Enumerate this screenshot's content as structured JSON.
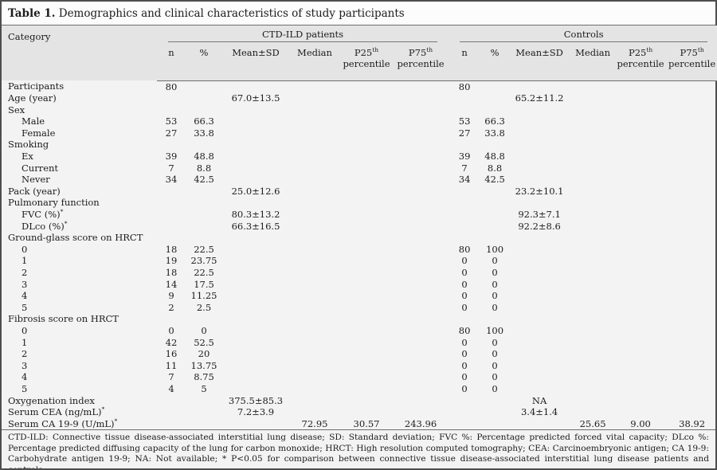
{
  "title": {
    "label": "Table 1.",
    "text": " Demographics and clinical characteristics of study participants"
  },
  "table": {
    "category_header": "Category",
    "groups": [
      {
        "label": "CTD-ILD patients"
      },
      {
        "label": "Controls"
      }
    ],
    "subcols": [
      {
        "line1": "n",
        "sup": "",
        "line2": ""
      },
      {
        "line1": "%",
        "sup": "",
        "line2": ""
      },
      {
        "line1": "Mean±SD",
        "sup": "",
        "line2": ""
      },
      {
        "line1": "Median",
        "sup": "",
        "line2": ""
      },
      {
        "line1": "P25",
        "sup": "th",
        "line2": "percentile"
      },
      {
        "line1": "P75",
        "sup": "th",
        "line2": "percentile"
      }
    ],
    "rows": [
      {
        "label": "Participants",
        "sup": "",
        "indent": 0,
        "values": [
          "80",
          "",
          "",
          "",
          "",
          "",
          "80",
          "",
          "",
          "",
          "",
          ""
        ]
      },
      {
        "label": "Age (year)",
        "sup": "",
        "indent": 0,
        "values": [
          "",
          "",
          "67.0±13.5",
          "",
          "",
          "",
          "",
          "",
          "65.2±11.2",
          "",
          "",
          ""
        ]
      },
      {
        "label": "Sex",
        "sup": "",
        "indent": 0,
        "values": [
          "",
          "",
          "",
          "",
          "",
          "",
          "",
          "",
          "",
          "",
          "",
          ""
        ]
      },
      {
        "label": "Male",
        "sup": "",
        "indent": 1,
        "values": [
          "53",
          "66.3",
          "",
          "",
          "",
          "",
          "53",
          "66.3",
          "",
          "",
          "",
          ""
        ]
      },
      {
        "label": "Female",
        "sup": "",
        "indent": 1,
        "values": [
          "27",
          "33.8",
          "",
          "",
          "",
          "",
          "27",
          "33.8",
          "",
          "",
          "",
          ""
        ]
      },
      {
        "label": "Smoking",
        "sup": "",
        "indent": 0,
        "values": [
          "",
          "",
          "",
          "",
          "",
          "",
          "",
          "",
          "",
          "",
          "",
          ""
        ]
      },
      {
        "label": "Ex",
        "sup": "",
        "indent": 1,
        "values": [
          "39",
          "48.8",
          "",
          "",
          "",
          "",
          "39",
          "48.8",
          "",
          "",
          "",
          ""
        ]
      },
      {
        "label": "Current",
        "sup": "",
        "indent": 1,
        "values": [
          "7",
          "8.8",
          "",
          "",
          "",
          "",
          "7",
          "8.8",
          "",
          "",
          "",
          ""
        ]
      },
      {
        "label": "Never",
        "sup": "",
        "indent": 1,
        "values": [
          "34",
          "42.5",
          "",
          "",
          "",
          "",
          "34",
          "42.5",
          "",
          "",
          "",
          ""
        ]
      },
      {
        "label": "Pack (year)",
        "sup": "",
        "indent": 0,
        "values": [
          "",
          "",
          "25.0±12.6",
          "",
          "",
          "",
          "",
          "",
          "23.2±10.1",
          "",
          "",
          ""
        ]
      },
      {
        "label": "Pulmonary function",
        "sup": "",
        "indent": 0,
        "values": [
          "",
          "",
          "",
          "",
          "",
          "",
          "",
          "",
          "",
          "",
          "",
          ""
        ]
      },
      {
        "label": "FVC (%)",
        "sup": "*",
        "indent": 1,
        "values": [
          "",
          "",
          "80.3±13.2",
          "",
          "",
          "",
          "",
          "",
          "92.3±7.1",
          "",
          "",
          ""
        ]
      },
      {
        "label": "DLco (%)",
        "sup": "*",
        "indent": 1,
        "values": [
          "",
          "",
          "66.3±16.5",
          "",
          "",
          "",
          "",
          "",
          "92.2±8.6",
          "",
          "",
          ""
        ]
      },
      {
        "label": "Ground-glass score on HRCT",
        "sup": "",
        "indent": 0,
        "values": [
          "",
          "",
          "",
          "",
          "",
          "",
          "",
          "",
          "",
          "",
          "",
          ""
        ]
      },
      {
        "label": "0",
        "sup": "",
        "indent": 1,
        "values": [
          "18",
          "22.5",
          "",
          "",
          "",
          "",
          "80",
          "100",
          "",
          "",
          "",
          ""
        ]
      },
      {
        "label": "1",
        "sup": "",
        "indent": 1,
        "values": [
          "19",
          "23.75",
          "",
          "",
          "",
          "",
          "0",
          "0",
          "",
          "",
          "",
          ""
        ]
      },
      {
        "label": "2",
        "sup": "",
        "indent": 1,
        "values": [
          "18",
          "22.5",
          "",
          "",
          "",
          "",
          "0",
          "0",
          "",
          "",
          "",
          ""
        ]
      },
      {
        "label": "3",
        "sup": "",
        "indent": 1,
        "values": [
          "14",
          "17.5",
          "",
          "",
          "",
          "",
          "0",
          "0",
          "",
          "",
          "",
          ""
        ]
      },
      {
        "label": "4",
        "sup": "",
        "indent": 1,
        "values": [
          "9",
          "11.25",
          "",
          "",
          "",
          "",
          "0",
          "0",
          "",
          "",
          "",
          ""
        ]
      },
      {
        "label": "5",
        "sup": "",
        "indent": 1,
        "values": [
          "2",
          "2.5",
          "",
          "",
          "",
          "",
          "0",
          "0",
          "",
          "",
          "",
          ""
        ]
      },
      {
        "label": "Fibrosis score on HRCT",
        "sup": "",
        "indent": 0,
        "values": [
          "",
          "",
          "",
          "",
          "",
          "",
          "",
          "",
          "",
          "",
          "",
          ""
        ]
      },
      {
        "label": "0",
        "sup": "",
        "indent": 1,
        "values": [
          "0",
          "0",
          "",
          "",
          "",
          "",
          "80",
          "100",
          "",
          "",
          "",
          ""
        ]
      },
      {
        "label": "1",
        "sup": "",
        "indent": 1,
        "values": [
          "42",
          "52.5",
          "",
          "",
          "",
          "",
          "0",
          "0",
          "",
          "",
          "",
          ""
        ]
      },
      {
        "label": "2",
        "sup": "",
        "indent": 1,
        "values": [
          "16",
          "20",
          "",
          "",
          "",
          "",
          "0",
          "0",
          "",
          "",
          "",
          ""
        ]
      },
      {
        "label": "3",
        "sup": "",
        "indent": 1,
        "values": [
          "11",
          "13.75",
          "",
          "",
          "",
          "",
          "0",
          "0",
          "",
          "",
          "",
          ""
        ]
      },
      {
        "label": "4",
        "sup": "",
        "indent": 1,
        "values": [
          "7",
          "8.75",
          "",
          "",
          "",
          "",
          "0",
          "0",
          "",
          "",
          "",
          ""
        ]
      },
      {
        "label": "5",
        "sup": "",
        "indent": 1,
        "values": [
          "4",
          "5",
          "",
          "",
          "",
          "",
          "0",
          "0",
          "",
          "",
          "",
          ""
        ]
      },
      {
        "label": "Oxygenation index",
        "sup": "",
        "indent": 0,
        "values": [
          "",
          "",
          "375.5±85.3",
          "",
          "",
          "",
          "",
          "",
          "NA",
          "",
          "",
          ""
        ]
      },
      {
        "label": "Serum CEA (ng/mL)",
        "sup": "*",
        "indent": 0,
        "values": [
          "",
          "",
          "7.2±3.9",
          "",
          "",
          "",
          "",
          "",
          "3.4±1.4",
          "",
          "",
          ""
        ]
      },
      {
        "label": "Serum CA 19-9 (U/mL)",
        "sup": "*",
        "indent": 0,
        "values": [
          "",
          "",
          "",
          "72.95",
          "30.57",
          "243.96",
          "",
          "",
          "",
          "25.65",
          "9.00",
          "38.92"
        ]
      }
    ]
  },
  "footnote": "CTD-ILD: Connective tissue disease-associated interstitial lung disease; SD: Standard deviation; FVC %: Percentage predicted forced vital capacity; DLco %: Percentage predicted diffusing capacity of the lung for carbon monoxide; HRCT: High resolution computed tomography; CEA: Carcinoembryonic antigen; CA 19-9: Carbohydrate antigen 19-9; NA: Not available; * P<0.05 for comparison between connective tissue disease-associated interstitial lung disease patients and controls."
}
